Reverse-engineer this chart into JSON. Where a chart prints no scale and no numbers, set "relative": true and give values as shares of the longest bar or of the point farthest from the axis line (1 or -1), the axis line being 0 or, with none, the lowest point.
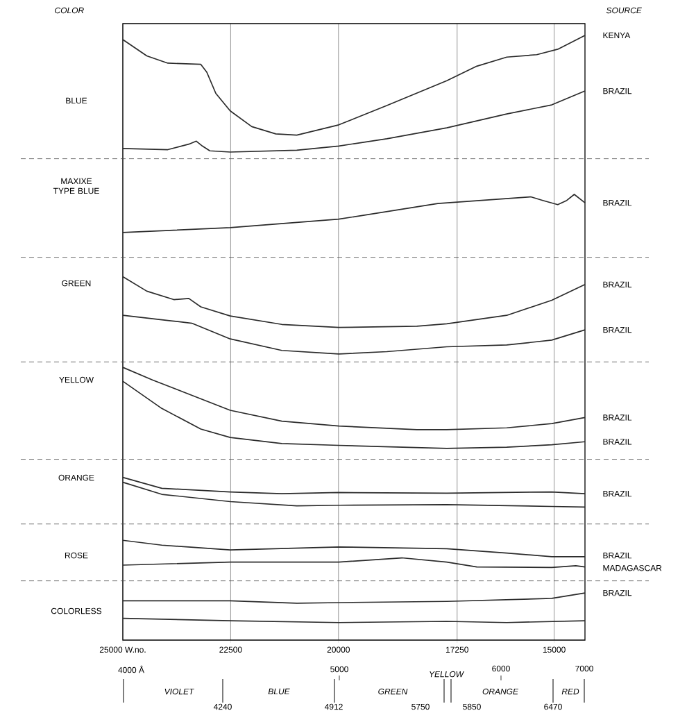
{
  "chart_data": {
    "type": "line",
    "relative": true,
    "grid": "x",
    "xlim": [
      25000,
      14286
    ],
    "xticks": [
      {
        "value": 25000,
        "label": "25000 W.no."
      },
      22500,
      20000,
      17250,
      15000
    ],
    "annotations": [
      "COLOR",
      "SOURCE",
      "BLUE",
      "MAXIXE TYPE BLUE",
      "GREEN",
      "YELLOW",
      "ORANGE",
      "ROSE",
      "COLORLESS",
      "4000 Å",
      "5000",
      "6000",
      "7000",
      "VIOLET",
      "BLUE",
      "GREEN",
      "YELLOW",
      "ORANGE",
      "RED",
      "4240",
      "4912",
      "5750",
      "5850",
      "6470"
    ],
    "ref_lines": [
      {
        "axis": "y",
        "value": 0.796,
        "line_style": "dashed"
      },
      {
        "axis": "y",
        "value": 0.633,
        "line_style": "dashed"
      },
      {
        "axis": "y",
        "value": 0.46,
        "line_style": "dashed"
      },
      {
        "axis": "y",
        "value": 0.299,
        "line_style": "dashed"
      },
      {
        "axis": "y",
        "value": 0.192,
        "line_style": "dashed"
      },
      {
        "axis": "y",
        "value": 0.098,
        "line_style": "dashed"
      }
    ],
    "series": [
      {
        "name": "KENYA",
        "color": "#2b2b2b",
        "x": [
          25000,
          24444,
          23957,
          23192,
          23053,
          22844,
          22510,
          22010,
          21454,
          20967,
          19993,
          18880,
          17490,
          16794,
          16099,
          15403,
          14917,
          14286
        ],
        "values": [
          0.993,
          0.966,
          0.954,
          0.952,
          0.939,
          0.904,
          0.875,
          0.849,
          0.837,
          0.835,
          0.852,
          0.884,
          0.925,
          0.949,
          0.964,
          0.968,
          0.977,
          1
        ]
      },
      {
        "name": "BRAZIL",
        "color": "#2b2b2b",
        "x": [
          25000,
          23957,
          23470,
          23296,
          23157,
          22983,
          22510,
          20967,
          19993,
          18880,
          17490,
          16099,
          15056,
          14286
        ],
        "values": [
          0.813,
          0.811,
          0.82,
          0.825,
          0.817,
          0.809,
          0.807,
          0.81,
          0.817,
          0.829,
          0.847,
          0.87,
          0.885,
          0.908
        ]
      },
      {
        "name": "BRAZIL",
        "color": "#2b2b2b",
        "x": [
          25000,
          22510,
          19993,
          17698,
          15542,
          15264,
          14917,
          14708,
          14534,
          14286
        ],
        "values": [
          0.674,
          0.682,
          0.696,
          0.722,
          0.733,
          0.727,
          0.72,
          0.727,
          0.737,
          0.723
        ]
      },
      {
        "name": "BRAZIL",
        "color": "#2b2b2b",
        "x": [
          25000,
          24444,
          23818,
          23470,
          23192,
          22510,
          21315,
          19993,
          18184,
          17490,
          16099,
          15056,
          14286
        ],
        "values": [
          0.601,
          0.577,
          0.563,
          0.565,
          0.551,
          0.536,
          0.522,
          0.517,
          0.519,
          0.523,
          0.537,
          0.562,
          0.588
        ]
      },
      {
        "name": "BRAZIL",
        "color": "#2b2b2b",
        "x": [
          25000,
          23887,
          23401,
          22510,
          21315,
          19993,
          18880,
          17490,
          16099,
          15056,
          14286
        ],
        "values": [
          0.537,
          0.528,
          0.524,
          0.498,
          0.479,
          0.473,
          0.477,
          0.485,
          0.488,
          0.496,
          0.513
        ]
      },
      {
        "name": "BRAZIL",
        "color": "#2b2b2b",
        "x": [
          25000,
          24305,
          22510,
          21315,
          19993,
          18184,
          17490,
          16099,
          15056,
          14286
        ],
        "values": [
          0.451,
          0.43,
          0.38,
          0.362,
          0.354,
          0.348,
          0.348,
          0.351,
          0.358,
          0.368
        ]
      },
      {
        "name": "BRAZIL",
        "color": "#2b2b2b",
        "x": [
          25000,
          24096,
          23192,
          22510,
          21315,
          19993,
          17490,
          16099,
          15056,
          14286
        ],
        "values": [
          0.428,
          0.383,
          0.349,
          0.335,
          0.325,
          0.322,
          0.317,
          0.319,
          0.323,
          0.328
        ]
      },
      {
        "name": "BRAZIL",
        "color": "#2b2b2b",
        "x": [
          25000,
          24096,
          22510,
          21315,
          19993,
          17490,
          15056,
          14286
        ],
        "values": [
          0.269,
          0.251,
          0.245,
          0.242,
          0.244,
          0.243,
          0.245,
          0.242
        ]
      },
      {
        "color": "#2b2b2b",
        "x": [
          25000,
          24096,
          22510,
          20967,
          19993,
          17490,
          15056,
          14286
        ],
        "values": [
          0.261,
          0.241,
          0.229,
          0.222,
          0.223,
          0.224,
          0.221,
          0.22
        ]
      },
      {
        "name": "BRAZIL",
        "color": "#2b2b2b",
        "x": [
          25000,
          24096,
          22510,
          19993,
          17490,
          16099,
          15056,
          14286
        ],
        "values": [
          0.165,
          0.157,
          0.149,
          0.154,
          0.151,
          0.144,
          0.138,
          0.138
        ]
      },
      {
        "name": "MADAGASCAR",
        "color": "#2b2b2b",
        "x": [
          25000,
          22510,
          19993,
          18532,
          17490,
          16794,
          15056,
          14499,
          14286
        ],
        "values": [
          0.124,
          0.129,
          0.129,
          0.136,
          0.129,
          0.121,
          0.12,
          0.123,
          0.121
        ]
      },
      {
        "name": "BRAZIL",
        "color": "#2b2b2b",
        "x": [
          25000,
          22510,
          20967,
          19993,
          17490,
          15056,
          14286
        ],
        "values": [
          0.065,
          0.065,
          0.061,
          0.062,
          0.064,
          0.069,
          0.078
        ]
      },
      {
        "color": "#2b2b2b",
        "x": [
          25000,
          22510,
          19993,
          17490,
          16099,
          14286
        ],
        "values": [
          0.036,
          0.032,
          0.029,
          0.031,
          0.029,
          0.032
        ]
      }
    ]
  }
}
